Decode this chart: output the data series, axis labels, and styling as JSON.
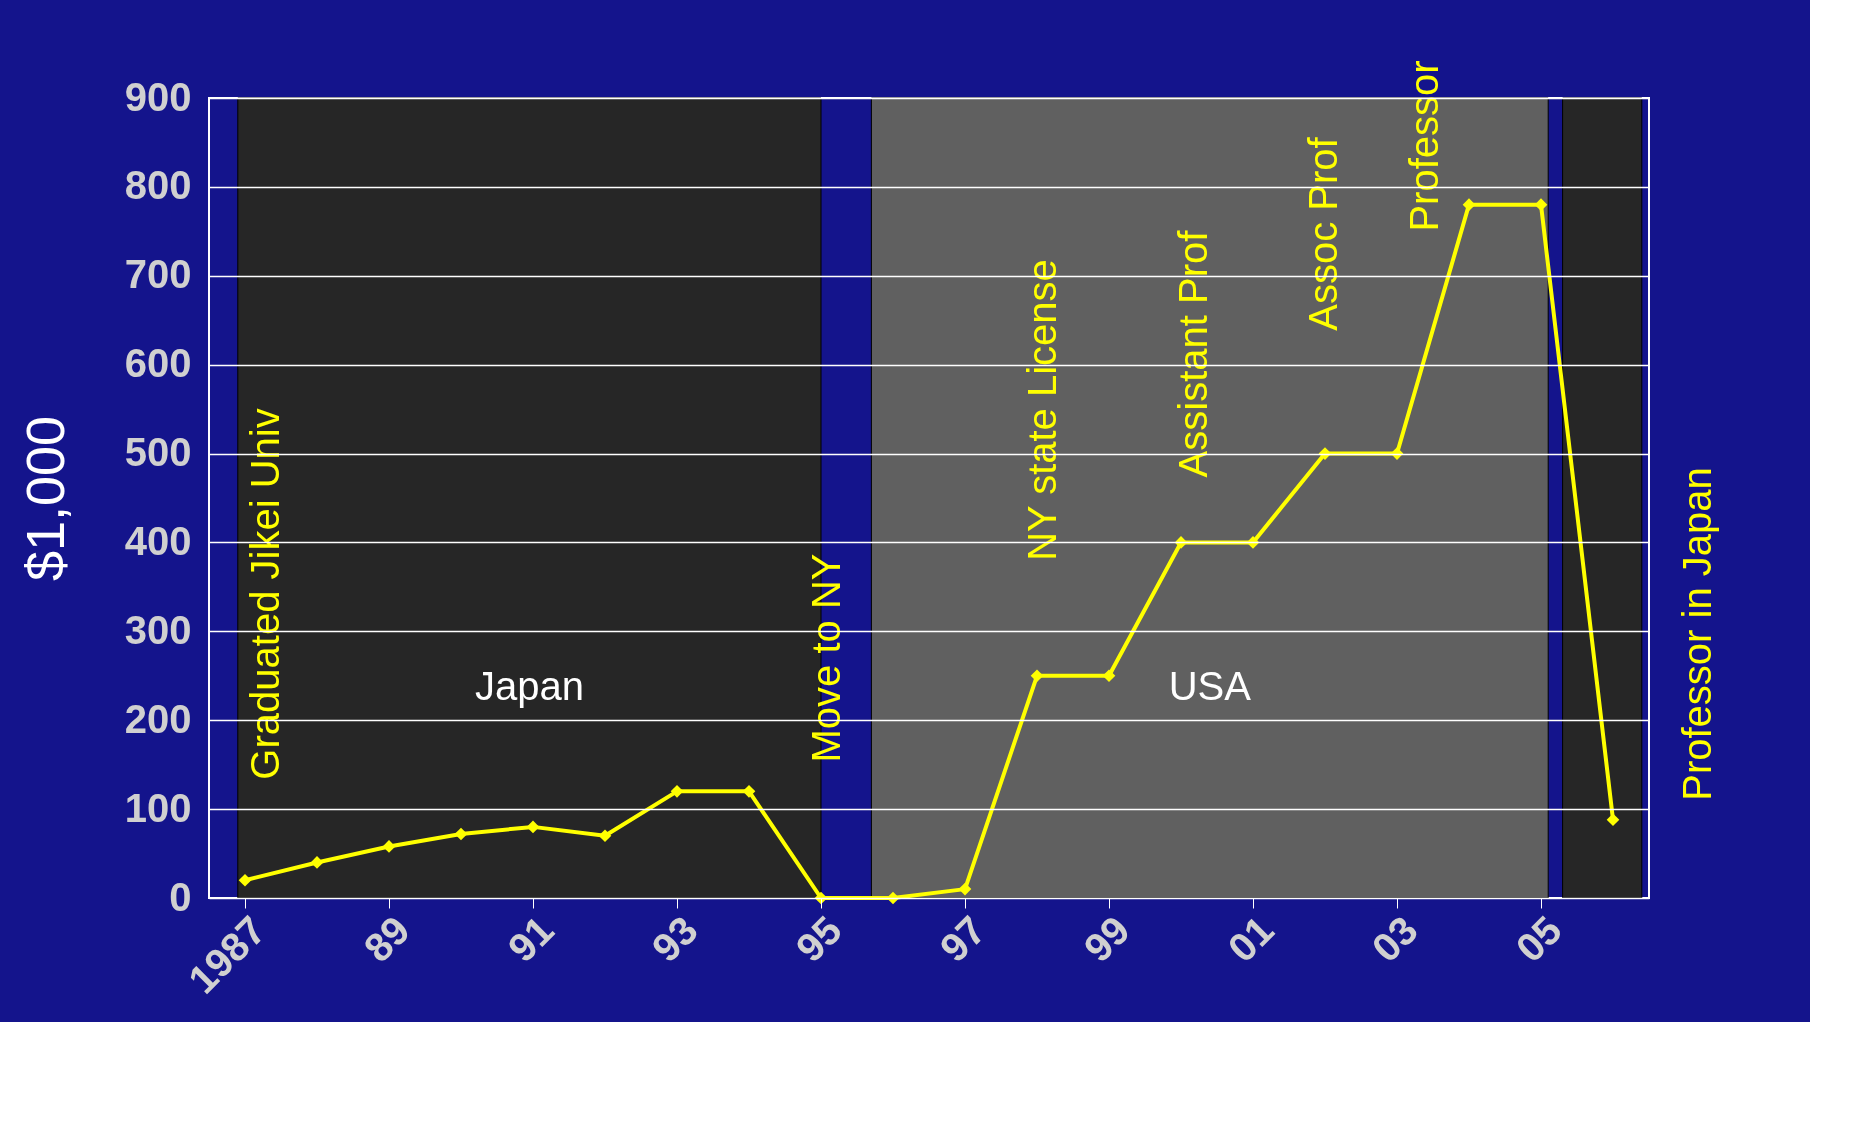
{
  "chart_data": {
    "type": "line",
    "ylabel": "$1,000",
    "x": [
      1987,
      1988,
      1989,
      1990,
      1991,
      1992,
      1993,
      1994,
      1995,
      1996,
      1997,
      1998,
      1999,
      2000,
      2001,
      2002,
      2003,
      2004,
      2005,
      2006
    ],
    "series": [
      {
        "color": "#ffff00",
        "values": [
          20,
          40,
          58,
          72,
          80,
          70,
          120,
          120,
          0,
          0,
          10,
          250,
          250,
          400,
          400,
          500,
          500,
          780,
          780,
          88
        ]
      }
    ],
    "marker": "diamond",
    "line_style": "solid",
    "grid": "y",
    "xlim": [
      1986.5,
      2006.5
    ],
    "ylim": [
      0,
      900
    ],
    "xticks": [
      1987,
      {
        "value": 1989,
        "label": "89"
      },
      {
        "value": 1991,
        "label": "91"
      },
      {
        "value": 1993,
        "label": "93"
      },
      {
        "value": 1995,
        "label": "95"
      },
      {
        "value": 1997,
        "label": "97"
      },
      {
        "value": 1999,
        "label": "99"
      },
      {
        "value": 2001,
        "label": "01"
      },
      {
        "value": 2003,
        "label": "03"
      },
      {
        "value": 2005,
        "label": "05"
      }
    ],
    "yticks": [
      0,
      100,
      200,
      300,
      400,
      500,
      600,
      700,
      800,
      900
    ],
    "bands": [
      {
        "axis": "x",
        "from": 1986.9,
        "to": 1995.0,
        "label": "Japan",
        "color": "#262626"
      },
      {
        "axis": "x",
        "from": 1995.7,
        "to": 2005.1,
        "label": "USA",
        "color": "#606060"
      },
      {
        "axis": "x",
        "from": 2005.3,
        "to": 2006.4,
        "color": "#262626"
      }
    ],
    "annotations": [
      "Graduated Jikei Univ",
      "Move to NY",
      "NY state License",
      "Assistant  Prof",
      "Assoc Prof",
      "Professor",
      "Professor in Japan"
    ]
  }
}
